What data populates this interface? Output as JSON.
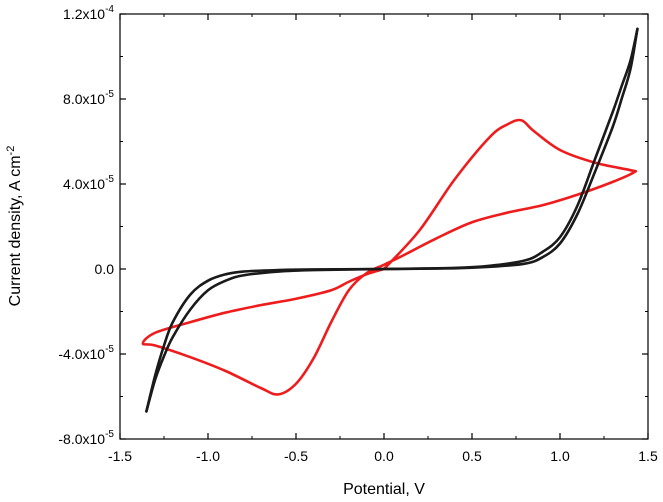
{
  "chart_data": {
    "type": "line",
    "title": "",
    "xlabel": "Potential, V",
    "ylabel": "Current density, A cm",
    "ylabel_sup": "-2",
    "xlim": [
      -1.5,
      1.5
    ],
    "ylim": [
      -8e-05,
      0.00012
    ],
    "x_ticks": [
      {
        "value": -1.5,
        "label": "-1.5"
      },
      {
        "value": -1.0,
        "label": "-1.0"
      },
      {
        "value": -0.5,
        "label": "-0.5"
      },
      {
        "value": 0.0,
        "label": "0.0"
      },
      {
        "value": 0.5,
        "label": "0.5"
      },
      {
        "value": 1.0,
        "label": "1.0"
      },
      {
        "value": 1.5,
        "label": "1.5"
      }
    ],
    "y_ticks": [
      {
        "value": -8e-05,
        "label": "-8.0x10",
        "exp": "-5"
      },
      {
        "value": -4e-05,
        "label": "-4.0x10",
        "exp": "-5"
      },
      {
        "value": 0.0,
        "label": "0.0",
        "exp": ""
      },
      {
        "value": 4e-05,
        "label": "4.0x10",
        "exp": "-5"
      },
      {
        "value": 8e-05,
        "label": "8.0x10",
        "exp": "-5"
      },
      {
        "value": 0.00012,
        "label": "1.2x10",
        "exp": "-4"
      }
    ],
    "grid": false,
    "legend": "none",
    "series": [
      {
        "color": "#ee1c1c",
        "x": [
          0.0,
          0.2,
          0.4,
          0.6,
          0.7,
          0.78,
          0.85,
          1.0,
          1.2,
          1.4,
          1.42,
          1.3,
          1.1,
          0.9,
          0.7,
          0.5,
          0.3,
          0.1,
          0.0,
          -0.1,
          -0.2,
          -0.3,
          -0.4,
          -0.5,
          -0.6,
          -0.7,
          -0.9,
          -1.1,
          -1.3,
          -1.37,
          -1.3,
          -1.1,
          -0.9,
          -0.7,
          -0.5,
          -0.3,
          -0.2,
          -0.1,
          0.0
        ],
        "y": [
          0.0,
          1.8e-05,
          4.2e-05,
          6.2e-05,
          6.8e-05,
          7e-05,
          6.5e-05,
          5.6e-05,
          5e-05,
          4.65e-05,
          4.55e-05,
          4.1e-05,
          3.5e-05,
          3e-05,
          2.65e-05,
          2.2e-05,
          1.45e-05,
          6e-06,
          2e-06,
          -2e-06,
          -1e-05,
          -2.5e-05,
          -4.2e-05,
          -5.4e-05,
          -5.9e-05,
          -5.6e-05,
          -4.8e-05,
          -4.15e-05,
          -3.6e-05,
          -3.5e-05,
          -3e-05,
          -2.5e-05,
          -2.05e-05,
          -1.7e-05,
          -1.4e-05,
          -1e-05,
          -6e-06,
          -2.5e-06,
          0.0
        ]
      },
      {
        "color": "#1a1a1a",
        "x": [
          -1.35,
          -1.3,
          -1.25,
          -1.2,
          -1.1,
          -1.0,
          -0.9,
          -0.8,
          -0.6,
          -0.4,
          0.0,
          0.4,
          0.6,
          0.8,
          0.9,
          1.0,
          1.1,
          1.2,
          1.3,
          1.35,
          1.4,
          1.44
        ],
        "y": [
          -6.7e-05,
          -5e-05,
          -3.6e-05,
          -2.5e-05,
          -1.2e-05,
          -5.5e-06,
          -2.5e-06,
          -1.2e-06,
          -5e-07,
          -2e-07,
          0.0,
          5e-07,
          1.5e-06,
          4e-06,
          8e-06,
          1.5e-05,
          3e-05,
          5.2e-05,
          7.4e-05,
          8.6e-05,
          9.8e-05,
          0.000113
        ]
      },
      {
        "color": "#1a1a1a",
        "x": [
          1.44,
          1.4,
          1.35,
          1.3,
          1.2,
          1.1,
          1.0,
          0.9,
          0.8,
          0.6,
          0.4,
          0.0,
          -0.4,
          -0.6,
          -0.8,
          -0.9,
          -1.0,
          -1.1,
          -1.2,
          -1.25,
          -1.3,
          -1.35
        ],
        "y": [
          0.000113,
          9.4e-05,
          8e-05,
          6.7e-05,
          4.6e-05,
          2.6e-05,
          1.2e-05,
          5.5e-06,
          2.5e-06,
          1e-06,
          3e-07,
          0.0,
          -5e-07,
          -1.2e-06,
          -3e-06,
          -5.5e-06,
          -1e-05,
          -1.9e-05,
          -3.2e-05,
          -4.1e-05,
          -5.2e-05,
          -6.7e-05
        ]
      }
    ]
  }
}
